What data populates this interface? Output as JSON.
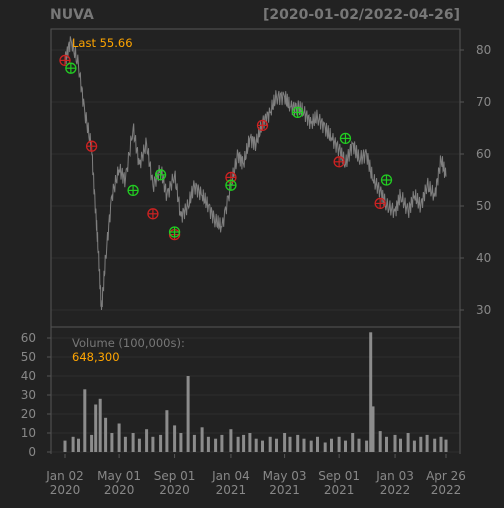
{
  "header": {
    "symbol": "NUVA",
    "date_range": "[2020-01-02/2022-04-26]"
  },
  "price_panel": {
    "last_label": "Last 55.66",
    "y_ticks": [
      "30",
      "40",
      "50",
      "60",
      "70",
      "80"
    ]
  },
  "volume_panel": {
    "title": "Volume (100,000s):",
    "last_value": "648,300",
    "y_ticks": [
      "0",
      "10",
      "20",
      "30",
      "40",
      "50",
      "60"
    ]
  },
  "x_axis": {
    "ticks": [
      {
        "line1": "Jan 02",
        "line2": "2020"
      },
      {
        "line1": "May 01",
        "line2": "2020"
      },
      {
        "line1": "Sep 01",
        "line2": "2020"
      },
      {
        "line1": "Jan 04",
        "line2": "2021"
      },
      {
        "line1": "May 03",
        "line2": "2021"
      },
      {
        "line1": "Sep 01",
        "line2": "2021"
      },
      {
        "line1": "Jan 03",
        "line2": "2022"
      },
      {
        "line1": "Apr 26",
        "line2": "2022"
      }
    ]
  },
  "colors": {
    "background": "#222222",
    "frame": "#555555",
    "grid": "#2e2e2e",
    "text": "#888888",
    "accent_last": "#FFA500",
    "price_line": "#7f7f7f",
    "volume_bars": "#8c8c8c",
    "buy_marker": "#22cc22",
    "sell_marker": "#cc2222"
  },
  "chart_data": [
    {
      "type": "line",
      "title": "",
      "series": [
        {
          "name": "",
          "x": [
            "2020-01-02",
            "2020-01-15",
            "2020-02-01",
            "2020-02-15",
            "2020-03-01",
            "2020-03-10",
            "2020-03-16",
            "2020-03-23",
            "2020-04-01",
            "2020-04-15",
            "2020-05-01",
            "2020-05-15",
            "2020-06-01",
            "2020-06-15",
            "2020-07-01",
            "2020-07-15",
            "2020-08-01",
            "2020-08-15",
            "2020-09-01",
            "2020-09-15",
            "2020-10-01",
            "2020-10-15",
            "2020-11-01",
            "2020-11-15",
            "2020-12-01",
            "2020-12-15",
            "2021-01-04",
            "2021-01-20",
            "2021-02-01",
            "2021-02-15",
            "2021-03-01",
            "2021-03-15",
            "2021-04-01",
            "2021-04-15",
            "2021-05-03",
            "2021-05-15",
            "2021-06-01",
            "2021-06-15",
            "2021-07-01",
            "2021-07-15",
            "2021-08-01",
            "2021-08-15",
            "2021-09-01",
            "2021-09-15",
            "2021-10-01",
            "2021-10-15",
            "2021-11-01",
            "2021-11-15",
            "2021-12-01",
            "2021-12-15",
            "2022-01-03",
            "2022-01-15",
            "2022-02-01",
            "2022-02-15",
            "2022-03-01",
            "2022-03-15",
            "2022-04-01",
            "2022-04-15",
            "2022-04-26"
          ],
          "y": [
            78,
            82,
            77,
            68,
            61,
            49,
            41,
            30,
            40,
            52,
            57,
            55,
            65,
            58,
            62,
            54,
            57,
            52,
            56,
            48,
            50,
            54,
            52,
            50,
            47,
            46,
            54,
            60,
            58,
            63,
            62,
            66,
            68,
            71,
            71,
            69,
            69,
            68,
            66,
            67,
            65,
            63,
            61,
            58,
            62,
            59,
            60,
            55,
            53,
            50,
            49,
            52,
            49,
            52,
            50,
            54,
            52,
            59,
            55.66
          ]
        }
      ],
      "markers": {
        "buy": [
          {
            "x": "2020-01-15",
            "y": 76.5
          },
          {
            "x": "2020-06-01",
            "y": 53
          },
          {
            "x": "2020-08-01",
            "y": 56
          },
          {
            "x": "2020-09-01",
            "y": 45
          },
          {
            "x": "2021-01-04",
            "y": 54
          },
          {
            "x": "2021-06-01",
            "y": 68
          },
          {
            "x": "2021-09-15",
            "y": 63
          },
          {
            "x": "2021-12-15",
            "y": 55
          }
        ],
        "sell": [
          {
            "x": "2020-01-02",
            "y": 78
          },
          {
            "x": "2020-03-01",
            "y": 61.5
          },
          {
            "x": "2020-07-15",
            "y": 48.5
          },
          {
            "x": "2020-09-01",
            "y": 44.5
          },
          {
            "x": "2021-01-04",
            "y": 55.5
          },
          {
            "x": "2021-03-15",
            "y": 65.5
          },
          {
            "x": "2021-09-01",
            "y": 58.5
          },
          {
            "x": "2021-12-01",
            "y": 50.5
          }
        ]
      },
      "ylim": [
        25,
        84
      ],
      "grid": true
    },
    {
      "type": "bar",
      "title": "Volume (100,000s):",
      "x": [
        "2020-01-02",
        "2020-01-20",
        "2020-02-01",
        "2020-02-15",
        "2020-03-01",
        "2020-03-10",
        "2020-03-20",
        "2020-04-01",
        "2020-04-15",
        "2020-05-01",
        "2020-05-15",
        "2020-06-01",
        "2020-06-15",
        "2020-07-01",
        "2020-07-15",
        "2020-08-01",
        "2020-08-15",
        "2020-09-01",
        "2020-09-15",
        "2020-10-01",
        "2020-10-15",
        "2020-11-01",
        "2020-11-15",
        "2020-12-01",
        "2020-12-15",
        "2021-01-04",
        "2021-01-20",
        "2021-02-01",
        "2021-02-15",
        "2021-03-01",
        "2021-03-15",
        "2021-04-01",
        "2021-04-15",
        "2021-05-03",
        "2021-05-15",
        "2021-06-01",
        "2021-06-15",
        "2021-07-01",
        "2021-07-15",
        "2021-08-01",
        "2021-08-15",
        "2021-09-01",
        "2021-09-15",
        "2021-10-01",
        "2021-10-15",
        "2021-11-01",
        "2021-11-10",
        "2021-11-15",
        "2021-12-01",
        "2021-12-15",
        "2022-01-03",
        "2022-01-15",
        "2022-02-01",
        "2022-02-15",
        "2022-03-01",
        "2022-03-15",
        "2022-04-01",
        "2022-04-15",
        "2022-04-26"
      ],
      "values": [
        6,
        8,
        7,
        33,
        9,
        25,
        28,
        18,
        10,
        15,
        8,
        10,
        7,
        12,
        8,
        9,
        22,
        14,
        10,
        40,
        9,
        13,
        8,
        7,
        9,
        12,
        8,
        9,
        10,
        7,
        6,
        8,
        7,
        10,
        8,
        9,
        7,
        6,
        8,
        5,
        7,
        8,
        6,
        10,
        7,
        6,
        63,
        24,
        11,
        8,
        9,
        7,
        10,
        6,
        8,
        9,
        7,
        8,
        6.5
      ],
      "ylim": [
        0,
        65
      ],
      "grid": true
    }
  ]
}
